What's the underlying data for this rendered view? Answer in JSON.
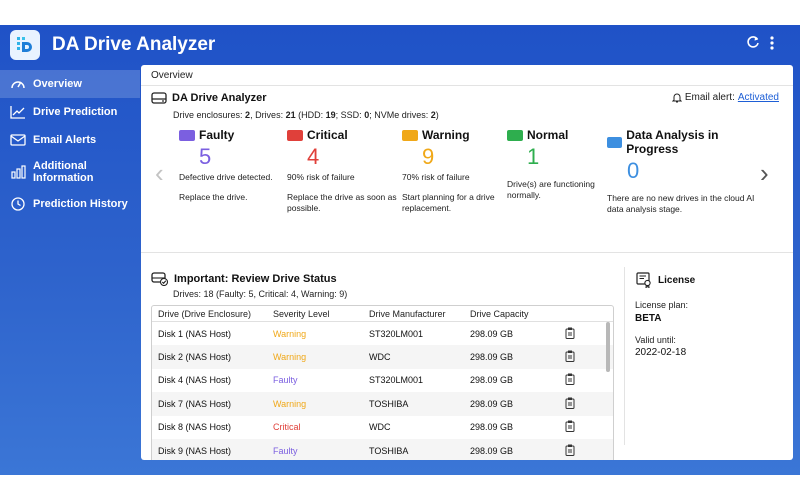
{
  "app": {
    "title": "DA Drive Analyzer"
  },
  "sidebar": {
    "items": [
      {
        "label": "Overview",
        "icon": "gauge-icon",
        "active": true
      },
      {
        "label": "Drive Prediction",
        "icon": "trend-line-icon"
      },
      {
        "label": "Email Alerts",
        "icon": "envelope-icon"
      },
      {
        "label_line1": "Additional",
        "label_line2": "Information",
        "icon": "bar-chart-icon"
      },
      {
        "label": "Prediction History",
        "icon": "history-icon"
      }
    ]
  },
  "breadcrumb": "Overview",
  "summary": {
    "title": "DA Drive Analyzer",
    "enclosures_label": "Drive enclosures:",
    "enclosures": "2",
    "drives_label": ", Drives:",
    "drives": "21",
    "hdd_label": "(HDD:",
    "hdd": "19",
    "ssd_label": "; SSD:",
    "ssd": "0",
    "nvme_label": "; NVMe drives:",
    "nvme": "2",
    "close": ")"
  },
  "email_alert": {
    "label": "Email alert:",
    "status": "Activated"
  },
  "stats": [
    {
      "name": "Faulty",
      "count": "5",
      "color": "#7b5fe0",
      "desc": "Defective drive detected.",
      "action": "Replace the drive."
    },
    {
      "name": "Critical",
      "count": "4",
      "color": "#e0403a",
      "desc": "90% risk of failure",
      "action": "Replace the drive as soon as possible."
    },
    {
      "name": "Warning",
      "count": "9",
      "color": "#f0a818",
      "desc": "70% risk of failure",
      "action": "Start planning for a drive replacement."
    },
    {
      "name": "Normal",
      "count": "1",
      "color": "#2eae4e",
      "desc": "",
      "action": "Drive(s) are functioning normally."
    },
    {
      "name": "Data Analysis in Progress",
      "count": "0",
      "color": "#3d8fe0",
      "desc": "",
      "action": "There are no new drives in the cloud AI data analysis stage."
    }
  ],
  "review": {
    "title": "Important: Review Drive Status",
    "summary": "Drives: 18 (Faulty: 5, Critical: 4, Warning: 9)",
    "columns": [
      "Drive (Drive Enclosure)",
      "Severity Level",
      "Drive Manufacturer",
      "Drive Capacity"
    ],
    "rows": [
      {
        "drive": "Disk 1 (NAS Host)",
        "severity": "Warning",
        "severity_color": "#f0a818",
        "manufacturer": "ST320LM001",
        "capacity": "298.09 GB"
      },
      {
        "drive": "Disk 2 (NAS Host)",
        "severity": "Warning",
        "severity_color": "#f0a818",
        "manufacturer": "WDC",
        "capacity": "298.09 GB"
      },
      {
        "drive": "Disk 4 (NAS Host)",
        "severity": "Faulty",
        "severity_color": "#7b5fe0",
        "manufacturer": "ST320LM001",
        "capacity": "298.09 GB"
      },
      {
        "drive": "Disk 7 (NAS Host)",
        "severity": "Warning",
        "severity_color": "#f0a818",
        "manufacturer": "TOSHIBA",
        "capacity": "298.09 GB"
      },
      {
        "drive": "Disk 8 (NAS Host)",
        "severity": "Critical",
        "severity_color": "#e0403a",
        "manufacturer": "WDC",
        "capacity": "298.09 GB"
      },
      {
        "drive": "Disk 9 (NAS Host)",
        "severity": "Faulty",
        "severity_color": "#7b5fe0",
        "manufacturer": "TOSHIBA",
        "capacity": "298.09 GB"
      }
    ]
  },
  "license": {
    "title": "License",
    "plan_label": "License plan:",
    "plan": "BETA",
    "valid_label": "Valid until:",
    "valid": "2022-02-18"
  }
}
